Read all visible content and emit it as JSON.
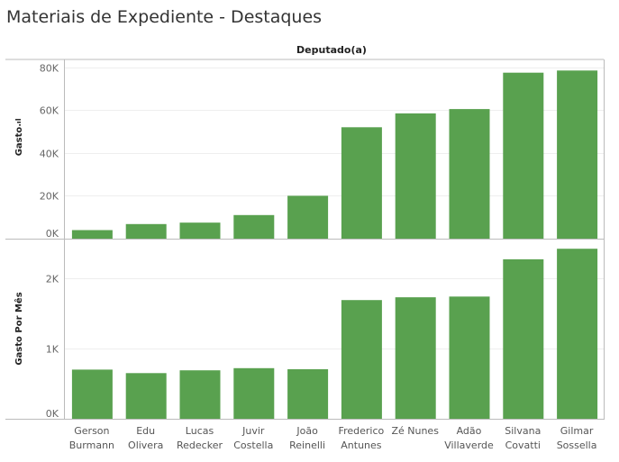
{
  "title": "Materiais de Expediente - Destaques",
  "header": "Deputado(a)",
  "colors": {
    "bar": "#59a14f",
    "grid": "#eeeeee",
    "axis": "#bbbbbb"
  },
  "chart_data": [
    {
      "type": "bar",
      "ylabel": "Gasto",
      "ylabel_icon": "sort-descending-icon",
      "categories": [
        [
          "Gerson",
          "Burmann"
        ],
        [
          "Edu",
          "Olivera"
        ],
        [
          "Lucas",
          "Redecker"
        ],
        [
          "Juvir",
          "Costella"
        ],
        [
          "João",
          "Reinelli"
        ],
        [
          "Frederico",
          "Antunes"
        ],
        [
          "Zé Nunes",
          ""
        ],
        [
          "Adão",
          "Villaverde"
        ],
        [
          "Silvana",
          "Covatti"
        ],
        [
          "Gilmar",
          "Sossella"
        ]
      ],
      "values": [
        4000,
        6800,
        7500,
        11000,
        20000,
        52000,
        58500,
        60500,
        77500,
        78500
      ],
      "ylim": [
        0,
        82000
      ],
      "ticks": [
        0,
        20000,
        40000,
        60000,
        80000
      ],
      "tick_labels": [
        "0K",
        "20K",
        "40K",
        "60K",
        "80K"
      ]
    },
    {
      "type": "bar",
      "ylabel": "Gasto Por Mês",
      "categories": [
        [
          "Gerson",
          "Burmann"
        ],
        [
          "Edu",
          "Olivera"
        ],
        [
          "Lucas",
          "Redecker"
        ],
        [
          "Juvir",
          "Costella"
        ],
        [
          "João",
          "Reinelli"
        ],
        [
          "Frederico",
          "Antunes"
        ],
        [
          "Zé Nunes",
          ""
        ],
        [
          "Adão",
          "Villaverde"
        ],
        [
          "Silvana",
          "Covatti"
        ],
        [
          "Gilmar",
          "Sossella"
        ]
      ],
      "values": [
        700,
        650,
        690,
        720,
        705,
        1690,
        1730,
        1740,
        2270,
        2420
      ],
      "ylim": [
        0,
        2500
      ],
      "ticks": [
        0,
        1000,
        2000
      ],
      "tick_labels": [
        "0K",
        "1K",
        "2K"
      ]
    }
  ]
}
